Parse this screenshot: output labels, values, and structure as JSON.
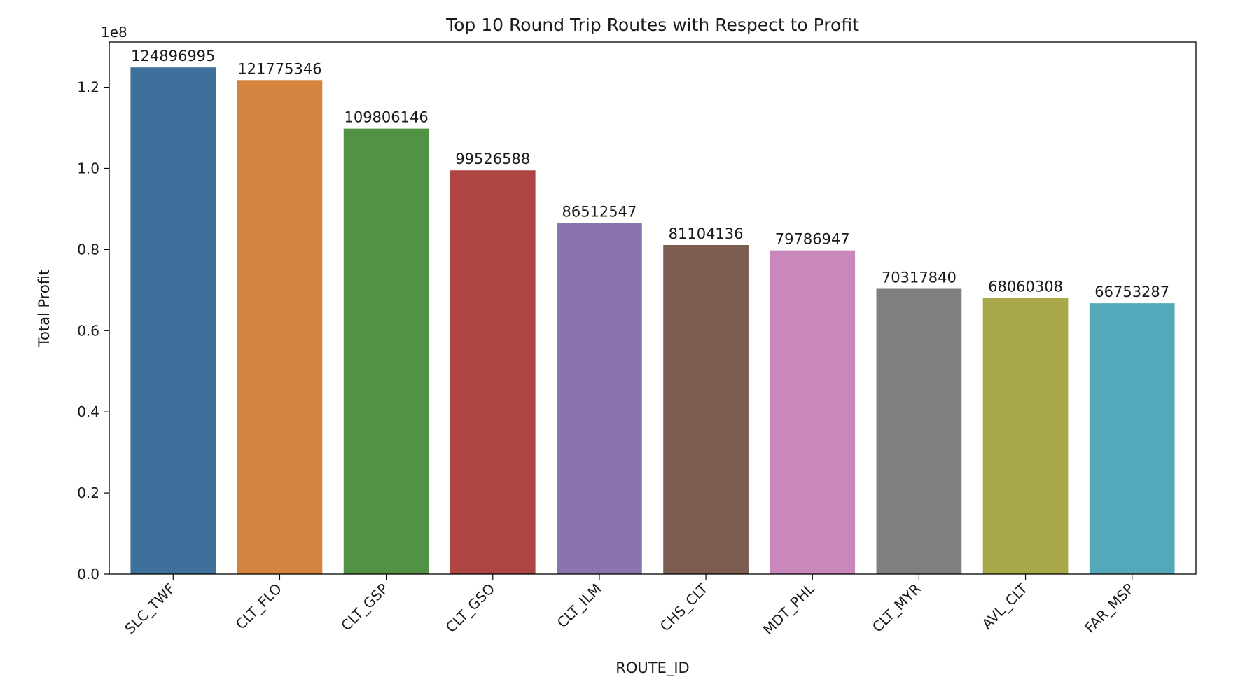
{
  "chart_data": {
    "type": "bar",
    "title": "Top 10 Round Trip Routes with Respect to Profit",
    "xlabel": "ROUTE_ID",
    "ylabel": "Total Profit",
    "offset_label": "1e8",
    "categories": [
      "SLC_TWF",
      "CLT_FLO",
      "CLT_GSP",
      "CLT_GSO",
      "CLT_ILM",
      "CHS_CLT",
      "MDT_PHL",
      "CLT_MYR",
      "AVL_CLT",
      "FAR_MSP"
    ],
    "values": [
      124896995,
      121775346,
      109806146,
      99526588,
      86512547,
      81104136,
      79786947,
      70317840,
      68060308,
      66753287
    ],
    "data_labels": [
      "124896995",
      "121775346",
      "109806146",
      "99526588",
      "86512547",
      "81104136",
      "79786947",
      "70317840",
      "68060308",
      "66753287"
    ],
    "colors": [
      "#3f6f9b",
      "#d4843f",
      "#529245",
      "#b04644",
      "#8b74ad",
      "#7d5c52",
      "#ca87bb",
      "#7f7f7f",
      "#a8a849",
      "#53a8ba"
    ],
    "yticks": [
      0,
      20000000,
      40000000,
      60000000,
      80000000,
      100000000,
      120000000
    ],
    "ytick_labels": [
      "0.0",
      "0.2",
      "0.4",
      "0.6",
      "0.8",
      "1.0",
      "1.2"
    ],
    "ylim": [
      0,
      131141845
    ],
    "grid": false,
    "legend": "none"
  }
}
